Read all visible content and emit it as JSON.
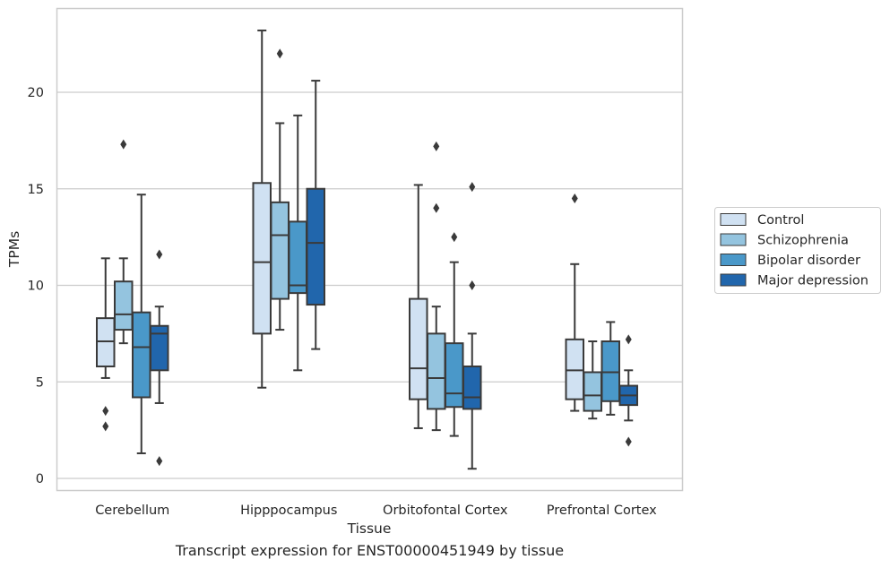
{
  "caption": "Transcript expression for ENST00000451949 by tissue",
  "chart_data": {
    "type": "box",
    "xlabel": "Tissue",
    "ylabel": "TPMs",
    "ylim": [
      -0.5,
      24.3
    ],
    "yticks": [
      0,
      5,
      10,
      15,
      20
    ],
    "grid": "horizontal",
    "legend_placement": "right",
    "categories": [
      "Cerebellum",
      "Hipppocampus",
      "Orbitofontal Cortex",
      "Prefrontal Cortex"
    ],
    "series": [
      {
        "name": "Control",
        "color": "#d0e1f2",
        "boxes": [
          {
            "whislo": 5.2,
            "q1": 5.8,
            "med": 7.1,
            "q3": 8.3,
            "whishi": 11.4,
            "fliers": [
              3.5,
              2.7
            ]
          },
          {
            "whislo": 4.7,
            "q1": 7.5,
            "med": 11.2,
            "q3": 15.3,
            "whishi": 23.2,
            "fliers": []
          },
          {
            "whislo": 2.6,
            "q1": 4.1,
            "med": 5.7,
            "q3": 9.3,
            "whishi": 15.2,
            "fliers": []
          },
          {
            "whislo": 3.5,
            "q1": 4.1,
            "med": 5.6,
            "q3": 7.2,
            "whishi": 11.1,
            "fliers": [
              14.5
            ]
          }
        ]
      },
      {
        "name": "Schizophrenia",
        "color": "#94c4df",
        "boxes": [
          {
            "whislo": 7.0,
            "q1": 7.7,
            "med": 8.5,
            "q3": 10.2,
            "whishi": 11.4,
            "fliers": [
              17.3
            ]
          },
          {
            "whislo": 7.7,
            "q1": 9.3,
            "med": 12.6,
            "q3": 14.3,
            "whishi": 18.4,
            "fliers": [
              22.0
            ]
          },
          {
            "whislo": 2.5,
            "q1": 3.6,
            "med": 5.2,
            "q3": 7.5,
            "whishi": 8.9,
            "fliers": [
              17.2,
              14.0
            ]
          },
          {
            "whislo": 3.1,
            "q1": 3.5,
            "med": 4.3,
            "q3": 5.5,
            "whishi": 7.1,
            "fliers": []
          }
        ]
      },
      {
        "name": "Bipolar disorder",
        "color": "#4a98c9",
        "boxes": [
          {
            "whislo": 1.3,
            "q1": 4.2,
            "med": 6.8,
            "q3": 8.6,
            "whishi": 14.7,
            "fliers": []
          },
          {
            "whislo": 5.6,
            "q1": 9.6,
            "med": 10.0,
            "q3": 13.3,
            "whishi": 18.8,
            "fliers": []
          },
          {
            "whislo": 2.2,
            "q1": 3.7,
            "med": 4.4,
            "q3": 7.0,
            "whishi": 11.2,
            "fliers": [
              12.5
            ]
          },
          {
            "whislo": 3.3,
            "q1": 4.0,
            "med": 5.5,
            "q3": 7.1,
            "whishi": 8.1,
            "fliers": []
          }
        ]
      },
      {
        "name": "Major depression",
        "color": "#2166ac",
        "boxes": [
          {
            "whislo": 3.9,
            "q1": 5.6,
            "med": 7.5,
            "q3": 7.9,
            "whishi": 8.9,
            "fliers": [
              11.6,
              0.9
            ]
          },
          {
            "whislo": 6.7,
            "q1": 9.0,
            "med": 12.2,
            "q3": 15.0,
            "whishi": 20.6,
            "fliers": []
          },
          {
            "whislo": 0.5,
            "q1": 3.6,
            "med": 4.2,
            "q3": 5.8,
            "whishi": 7.5,
            "fliers": [
              15.1,
              10.0
            ]
          },
          {
            "whislo": 3.0,
            "q1": 3.8,
            "med": 4.3,
            "q3": 4.8,
            "whishi": 5.6,
            "fliers": [
              7.2,
              1.9
            ]
          }
        ]
      }
    ]
  }
}
